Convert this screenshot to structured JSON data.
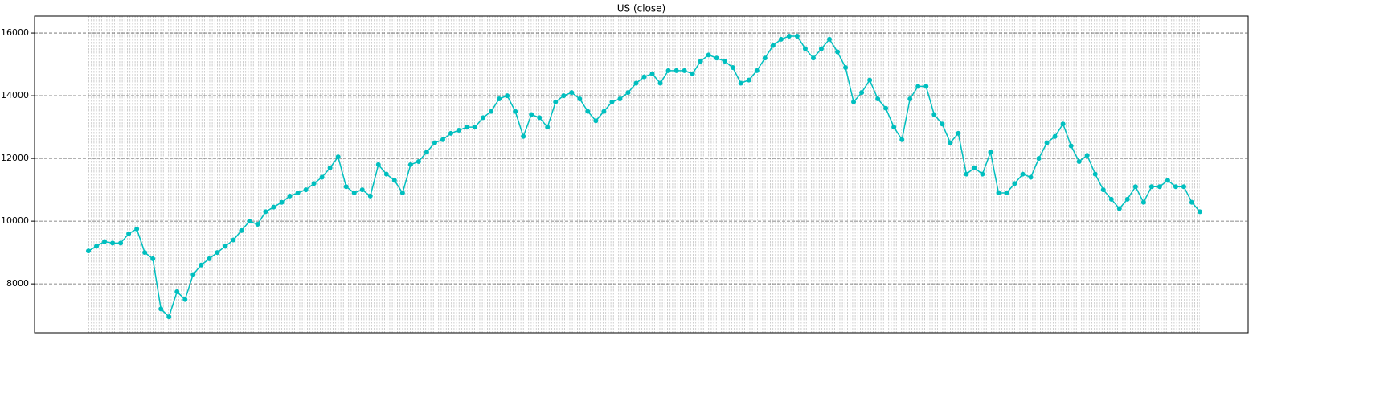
{
  "chart_data": {
    "type": "line",
    "title": "US (close)",
    "color": "#00bfbf",
    "grid": true,
    "ylim": [
      6440,
      16540
    ],
    "yticks": [
      8000,
      10000,
      12000,
      14000,
      16000
    ],
    "values": [
      9050,
      9200,
      9350,
      9300,
      9300,
      9600,
      9750,
      9000,
      8800,
      7200,
      6950,
      7750,
      7500,
      8300,
      8600,
      8800,
      9000,
      9200,
      9400,
      9700,
      10000,
      9900,
      10300,
      10450,
      10600,
      10800,
      10900,
      11000,
      11200,
      11400,
      11700,
      12050,
      11100,
      10900,
      11000,
      10800,
      11800,
      11500,
      11300,
      10900,
      11800,
      11900,
      12200,
      12500,
      12600,
      12800,
      12900,
      13000,
      13000,
      13300,
      13500,
      13900,
      14000,
      13500,
      12700,
      13400,
      13300,
      13000,
      13800,
      14000,
      14100,
      13900,
      13500,
      13200,
      13500,
      13800,
      13900,
      14100,
      14400,
      14600,
      14700,
      14400,
      14800,
      14800,
      14800,
      14700,
      15100,
      15300,
      15200,
      15100,
      14900,
      14400,
      14500,
      14800,
      15200,
      15600,
      15800,
      15900,
      15900,
      15500,
      15200,
      15500,
      15800,
      15400,
      14900,
      13800,
      14100,
      14500,
      13900,
      13600,
      13000,
      12600,
      13900,
      14300,
      14300,
      13400,
      13100,
      12500,
      12800,
      11500,
      11700,
      11500,
      12200,
      10900,
      10900,
      11200,
      11500,
      11400,
      12000,
      12500,
      12700,
      13100,
      12400,
      11900,
      12100,
      11500,
      11000,
      10700,
      10400,
      10700,
      11100,
      10600,
      11100,
      11100,
      11300,
      11100,
      11100,
      10600,
      10300
    ]
  }
}
